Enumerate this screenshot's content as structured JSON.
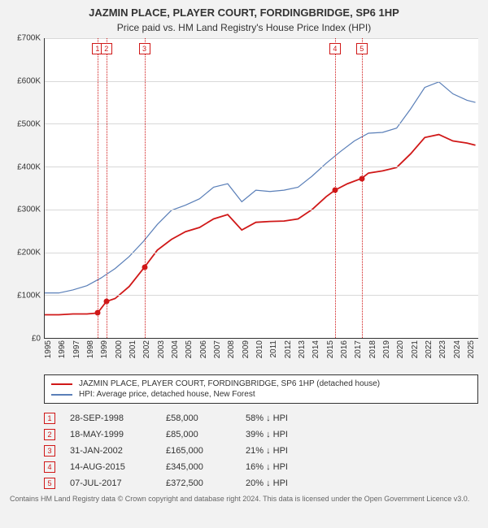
{
  "title_line1": "JAZMIN PLACE, PLAYER COURT, FORDINGBRIDGE, SP6 1HP",
  "title_line2": "Price paid vs. HM Land Registry's House Price Index (HPI)",
  "chart": {
    "type": "line",
    "background_color": "#ffffff",
    "plot_border_color": "#333333",
    "grid_color": "#d8d8d8",
    "x": {
      "min": 1995,
      "max": 2025.8,
      "ticks": [
        1995,
        1996,
        1997,
        1998,
        1999,
        2000,
        2001,
        2002,
        2003,
        2004,
        2005,
        2006,
        2007,
        2008,
        2009,
        2010,
        2011,
        2012,
        2013,
        2014,
        2015,
        2016,
        2017,
        2018,
        2019,
        2020,
        2021,
        2022,
        2023,
        2024,
        2025
      ]
    },
    "y": {
      "min": 0,
      "max": 700000,
      "ticks": [
        0,
        100000,
        200000,
        300000,
        400000,
        500000,
        600000,
        700000
      ],
      "tick_labels": [
        "£0",
        "£100K",
        "£200K",
        "£300K",
        "£400K",
        "£500K",
        "£600K",
        "£700K"
      ]
    },
    "series": [
      {
        "name": "property",
        "legend_label": "JAZMIN PLACE, PLAYER COURT, FORDINGBRIDGE, SP6 1HP (detached house)",
        "color": "#d01818",
        "width": 1.8,
        "points": [
          [
            1995.0,
            54000
          ],
          [
            1996.0,
            54000
          ],
          [
            1997.0,
            56000
          ],
          [
            1998.0,
            56000
          ],
          [
            1998.75,
            58000
          ],
          [
            1999.38,
            85000
          ],
          [
            2000.0,
            92000
          ],
          [
            2001.0,
            120000
          ],
          [
            2002.08,
            165000
          ],
          [
            2003.0,
            205000
          ],
          [
            2004.0,
            230000
          ],
          [
            2005.0,
            248000
          ],
          [
            2006.0,
            258000
          ],
          [
            2007.0,
            278000
          ],
          [
            2008.0,
            288000
          ],
          [
            2009.0,
            252000
          ],
          [
            2010.0,
            270000
          ],
          [
            2011.0,
            272000
          ],
          [
            2012.0,
            273000
          ],
          [
            2013.0,
            278000
          ],
          [
            2014.0,
            300000
          ],
          [
            2015.0,
            330000
          ],
          [
            2015.62,
            345000
          ],
          [
            2016.5,
            360000
          ],
          [
            2017.52,
            372500
          ],
          [
            2018.0,
            385000
          ],
          [
            2019.0,
            390000
          ],
          [
            2020.0,
            398000
          ],
          [
            2021.0,
            430000
          ],
          [
            2022.0,
            468000
          ],
          [
            2023.0,
            475000
          ],
          [
            2024.0,
            460000
          ],
          [
            2025.0,
            455000
          ],
          [
            2025.6,
            450000
          ]
        ]
      },
      {
        "name": "hpi",
        "legend_label": "HPI: Average price, detached house, New Forest",
        "color": "#5a7fb8",
        "width": 1.2,
        "points": [
          [
            1995.0,
            105000
          ],
          [
            1996.0,
            105000
          ],
          [
            1997.0,
            112000
          ],
          [
            1998.0,
            122000
          ],
          [
            1999.0,
            140000
          ],
          [
            2000.0,
            162000
          ],
          [
            2001.0,
            190000
          ],
          [
            2002.0,
            225000
          ],
          [
            2003.0,
            265000
          ],
          [
            2004.0,
            298000
          ],
          [
            2005.0,
            310000
          ],
          [
            2006.0,
            325000
          ],
          [
            2007.0,
            352000
          ],
          [
            2008.0,
            360000
          ],
          [
            2009.0,
            318000
          ],
          [
            2010.0,
            345000
          ],
          [
            2011.0,
            342000
          ],
          [
            2012.0,
            345000
          ],
          [
            2013.0,
            352000
          ],
          [
            2014.0,
            378000
          ],
          [
            2015.0,
            408000
          ],
          [
            2016.0,
            435000
          ],
          [
            2017.0,
            460000
          ],
          [
            2018.0,
            478000
          ],
          [
            2019.0,
            480000
          ],
          [
            2020.0,
            490000
          ],
          [
            2021.0,
            535000
          ],
          [
            2022.0,
            585000
          ],
          [
            2023.0,
            598000
          ],
          [
            2024.0,
            570000
          ],
          [
            2025.0,
            555000
          ],
          [
            2025.6,
            550000
          ]
        ]
      }
    ],
    "marker_color": "#d01818",
    "sale_markers": [
      {
        "n": "1",
        "x": 1998.75,
        "y": 58000
      },
      {
        "n": "2",
        "x": 1999.38,
        "y": 85000
      },
      {
        "n": "3",
        "x": 2002.08,
        "y": 165000
      },
      {
        "n": "4",
        "x": 2015.62,
        "y": 345000
      },
      {
        "n": "5",
        "x": 2017.52,
        "y": 372500
      }
    ]
  },
  "sales_table": {
    "rows": [
      {
        "n": "1",
        "date": "28-SEP-1998",
        "price": "£58,000",
        "diff": "58% ↓ HPI"
      },
      {
        "n": "2",
        "date": "18-MAY-1999",
        "price": "£85,000",
        "diff": "39% ↓ HPI"
      },
      {
        "n": "3",
        "date": "31-JAN-2002",
        "price": "£165,000",
        "diff": "21% ↓ HPI"
      },
      {
        "n": "4",
        "date": "14-AUG-2015",
        "price": "£345,000",
        "diff": "16% ↓ HPI"
      },
      {
        "n": "5",
        "date": "07-JUL-2017",
        "price": "£372,500",
        "diff": "20% ↓ HPI"
      }
    ]
  },
  "attribution": "Contains HM Land Registry data © Crown copyright and database right 2024. This data is licensed under the Open Government Licence v3.0."
}
